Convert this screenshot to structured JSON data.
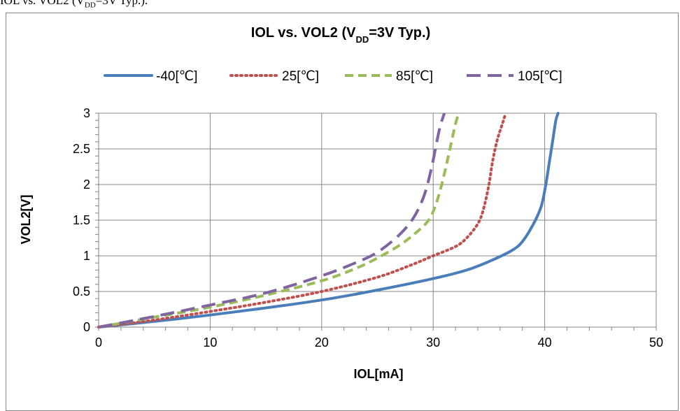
{
  "caption": {
    "prefix": "IOL vs. VOL2 (V",
    "sub": "DD",
    "suffix": "=3V Typ.)."
  },
  "chart_data": {
    "type": "line",
    "title": {
      "prefix": "IOL vs. VOL2 (V",
      "sub": "DD",
      "suffix": "=3V Typ.)"
    },
    "xlabel": "IOL[mA]",
    "ylabel": "VOL2[V]",
    "xlim": [
      0,
      50
    ],
    "ylim": [
      0,
      3
    ],
    "xticks": [
      "0",
      "10",
      "20",
      "30",
      "40",
      "50"
    ],
    "yticks": [
      "0",
      "0.5",
      "1",
      "1.5",
      "2",
      "2.5",
      "3"
    ],
    "grid": true,
    "legend_position": "top",
    "series": [
      {
        "name": "-40[℃]",
        "color": "#4A7EBB",
        "dash": "solid",
        "x": [
          0,
          5,
          10,
          15,
          20,
          25,
          30,
          33,
          35,
          37,
          38,
          39,
          39.7,
          40.1,
          40.4,
          40.7,
          41.0,
          41.2
        ],
        "y": [
          0,
          0.08,
          0.17,
          0.27,
          0.38,
          0.52,
          0.68,
          0.8,
          0.92,
          1.07,
          1.2,
          1.45,
          1.7,
          2.0,
          2.3,
          2.6,
          2.9,
          3.0
        ]
      },
      {
        "name": "25[℃]",
        "color": "#C0504D",
        "dash": "dotted",
        "x": [
          0,
          5,
          10,
          15,
          20,
          25,
          28,
          30,
          32,
          33,
          34,
          34.5,
          35,
          35.3,
          35.7,
          36.2,
          36.5
        ],
        "y": [
          0,
          0.1,
          0.22,
          0.35,
          0.5,
          0.7,
          0.87,
          1.0,
          1.13,
          1.25,
          1.45,
          1.65,
          2.0,
          2.3,
          2.6,
          2.85,
          3.0
        ]
      },
      {
        "name": "85[℃]",
        "color": "#9BBB59",
        "dash": "dashed",
        "x": [
          0,
          5,
          10,
          15,
          20,
          23,
          25,
          27,
          28.5,
          29.5,
          30,
          30.5,
          31,
          31.5,
          32,
          32.3
        ],
        "y": [
          0,
          0.14,
          0.28,
          0.45,
          0.65,
          0.82,
          0.97,
          1.15,
          1.33,
          1.48,
          1.62,
          1.85,
          2.15,
          2.5,
          2.85,
          3.0
        ]
      },
      {
        "name": "105[℃]",
        "color": "#8064A2",
        "dash": "longdash",
        "x": [
          0,
          5,
          10,
          15,
          20,
          23,
          25,
          27,
          28.3,
          29.2,
          29.8,
          30.2,
          30.6,
          31.0
        ],
        "y": [
          0,
          0.15,
          0.31,
          0.48,
          0.72,
          0.9,
          1.05,
          1.3,
          1.55,
          1.85,
          2.2,
          2.5,
          2.8,
          3.0
        ]
      }
    ]
  }
}
